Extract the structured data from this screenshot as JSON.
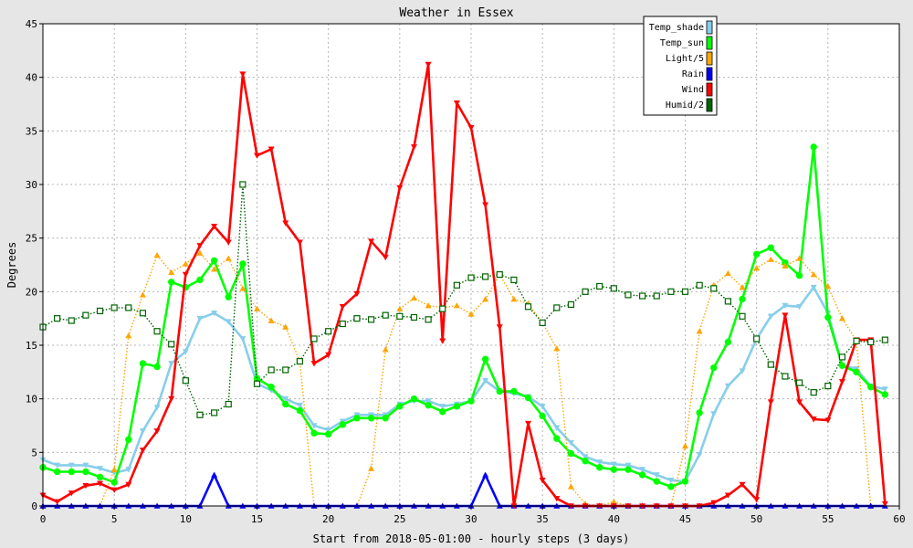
{
  "chart_data": {
    "type": "line",
    "title": "Weather in Essex",
    "xlabel": "Start from 2018-05-01:00 - hourly steps (3 days)",
    "ylabel": "Degrees",
    "xlim": [
      0,
      60
    ],
    "ylim": [
      0,
      45
    ],
    "x_ticks": [
      0,
      5,
      10,
      15,
      20,
      25,
      30,
      35,
      40,
      45,
      50,
      55,
      60
    ],
    "y_ticks": [
      0,
      5,
      10,
      15,
      20,
      25,
      30,
      35,
      40,
      45
    ],
    "grid": true,
    "legend_position": "top-right",
    "series": [
      {
        "name": "Temp_shade",
        "color": "#87ceeb",
        "marker": "triangle-down",
        "line_style": "solid",
        "values": [
          4.3,
          3.8,
          3.8,
          3.8,
          3.5,
          3.1,
          3.4,
          7.0,
          9.2,
          13.3,
          14.4,
          17.5,
          18.0,
          17.2,
          15.6,
          11.4,
          10.8,
          10.0,
          9.4,
          7.5,
          7.1,
          7.9,
          8.5,
          8.5,
          8.5,
          9.5,
          9.8,
          9.8,
          9.3,
          9.5,
          9.8,
          11.7,
          10.7,
          10.5,
          10.2,
          9.3,
          7.3,
          5.9,
          4.6,
          4.1,
          3.9,
          3.8,
          3.4,
          2.9,
          2.4,
          2.3,
          4.8,
          8.6,
          11.2,
          12.6,
          15.6,
          17.7,
          18.7,
          18.6,
          20.4,
          18.0,
          13.1,
          12.8,
          11.2,
          10.9
        ]
      },
      {
        "name": "Temp_sun",
        "color": "#00ff00",
        "marker": "circle",
        "line_style": "solid",
        "values": [
          3.6,
          3.2,
          3.2,
          3.2,
          2.7,
          2.2,
          6.2,
          13.3,
          13.0,
          20.9,
          20.4,
          21.1,
          22.9,
          19.5,
          22.6,
          11.9,
          11.1,
          9.5,
          8.9,
          6.8,
          6.7,
          7.6,
          8.2,
          8.2,
          8.2,
          9.3,
          10.0,
          9.4,
          8.8,
          9.3,
          9.8,
          13.7,
          10.7,
          10.7,
          10.1,
          8.4,
          6.3,
          4.9,
          4.2,
          3.6,
          3.4,
          3.4,
          2.9,
          2.3,
          1.8,
          2.3,
          8.7,
          12.9,
          15.3,
          19.3,
          23.5,
          24.1,
          22.7,
          21.5,
          33.5,
          17.6,
          13.1,
          12.5,
          11.1,
          10.4
        ]
      },
      {
        "name": "Light/5",
        "color": "#ffa500",
        "marker": "triangle-up",
        "line_style": "dotted",
        "values": [
          0,
          0,
          0,
          0,
          0,
          3.4,
          15.9,
          19.7,
          23.4,
          21.8,
          22.6,
          23.6,
          22.1,
          23.1,
          20.3,
          18.4,
          17.3,
          16.7,
          13.5,
          0,
          0,
          0,
          0,
          3.5,
          14.6,
          18.4,
          19.4,
          18.7,
          18.5,
          18.7,
          17.9,
          19.3,
          21.6,
          19.3,
          18.9,
          17.1,
          14.7,
          1.8,
          0.2,
          0,
          0.4,
          0,
          0,
          0,
          0,
          5.6,
          16.3,
          20.6,
          21.7,
          20.4,
          22.2,
          23.0,
          22.4,
          23.1,
          21.6,
          20.5,
          17.5,
          15.4,
          0,
          0
        ]
      },
      {
        "name": "Rain",
        "color": "#0000ff",
        "marker": "triangle-up",
        "line_style": "solid",
        "values": [
          0,
          0,
          0,
          0,
          0,
          0,
          0,
          0,
          0,
          0,
          0,
          0,
          2.9,
          0,
          0,
          0,
          0,
          0,
          0,
          0,
          0,
          0,
          0,
          0,
          0,
          0,
          0,
          0,
          0,
          0,
          0,
          2.9,
          0,
          0,
          0,
          0,
          0,
          0,
          0,
          0,
          0,
          0,
          0,
          0,
          0,
          0,
          0,
          0,
          0,
          0,
          0,
          0,
          0,
          0,
          0,
          0,
          0,
          0,
          0,
          0
        ]
      },
      {
        "name": "Wind",
        "color": "#ff0000",
        "marker": "triangle-down",
        "line_style": "solid",
        "values": [
          1.0,
          0.4,
          1.2,
          1.9,
          2.1,
          1.5,
          2.0,
          5.2,
          7.0,
          10.0,
          21.6,
          24.3,
          26.1,
          24.6,
          40.3,
          32.7,
          33.3,
          26.4,
          24.6,
          13.3,
          14.1,
          18.6,
          19.8,
          24.7,
          23.2,
          29.7,
          33.5,
          41.2,
          15.4,
          37.6,
          35.3,
          28.1,
          16.7,
          0,
          7.7,
          2.4,
          0.7,
          0,
          0,
          0,
          0,
          0,
          0,
          0,
          0,
          0,
          0,
          0.3,
          1.0,
          2.0,
          0.6,
          9.7,
          17.8,
          9.7,
          8.1,
          8.0,
          11.6,
          15.5,
          15.5,
          0.2
        ]
      },
      {
        "name": "Humid/2",
        "color": "#006400",
        "marker": "square",
        "line_style": "dotted",
        "values": [
          16.7,
          17.5,
          17.3,
          17.8,
          18.2,
          18.5,
          18.5,
          18.0,
          16.3,
          15.1,
          11.7,
          8.5,
          8.7,
          9.5,
          30.0,
          11.4,
          12.7,
          12.7,
          13.5,
          15.6,
          16.3,
          17.0,
          17.5,
          17.4,
          17.8,
          17.7,
          17.6,
          17.4,
          18.4,
          20.6,
          21.3,
          21.4,
          21.6,
          21.1,
          18.6,
          17.1,
          18.5,
          18.8,
          20.0,
          20.5,
          20.3,
          19.7,
          19.6,
          19.6,
          20.0,
          20.0,
          20.6,
          20.3,
          19.1,
          17.7,
          15.6,
          13.2,
          12.1,
          11.5,
          10.6,
          11.2,
          13.9,
          15.4,
          15.3,
          15.5
        ]
      }
    ]
  }
}
